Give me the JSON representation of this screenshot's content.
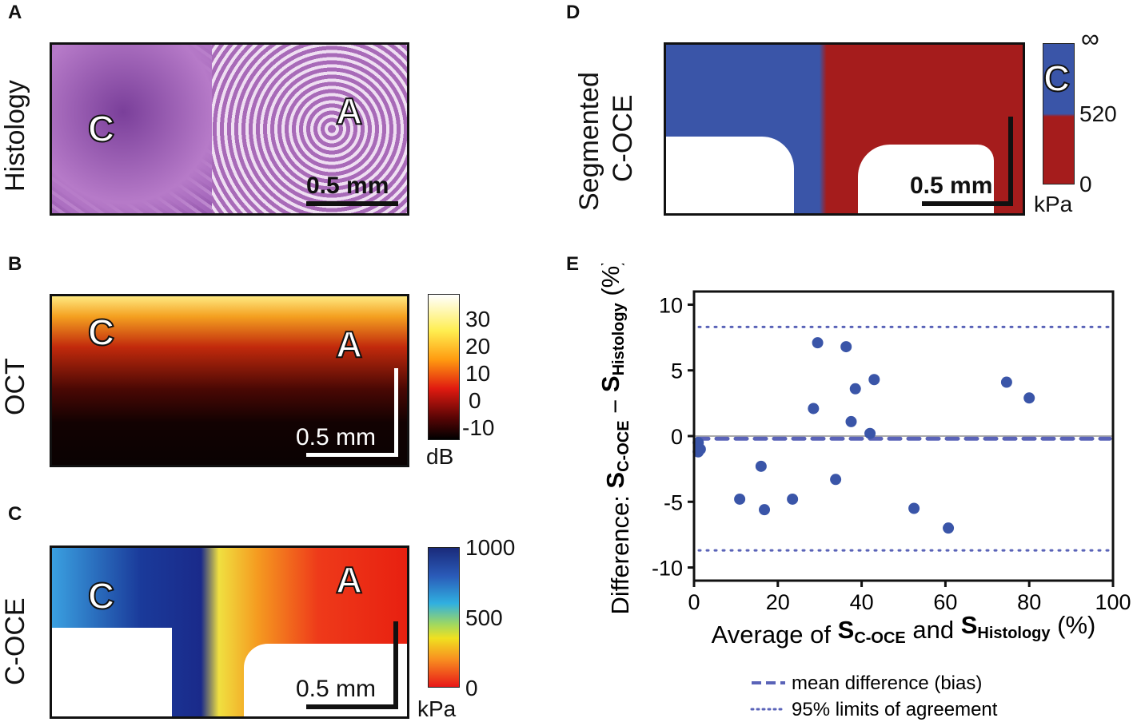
{
  "panels": {
    "A": {
      "letter": "A",
      "row_label": "Histology",
      "region_c": "C",
      "region_a": "A",
      "scale_bar": "0.5 mm"
    },
    "B": {
      "letter": "B",
      "row_label": "OCT",
      "region_c": "C",
      "region_a": "A",
      "scale_bar": "0.5 mm",
      "colorbar": {
        "ticks": [
          "30",
          "20",
          "10",
          "0",
          "-10"
        ],
        "unit": "dB"
      }
    },
    "C": {
      "letter": "C",
      "row_label": "C-OCE",
      "region_c": "C",
      "region_a": "A",
      "scale_bar": "0.5 mm",
      "colorbar": {
        "ticks": [
          "1000",
          "500",
          "0"
        ],
        "unit": "kPa"
      }
    },
    "D": {
      "letter": "D",
      "row_label_1": "Segmented",
      "row_label_2": "C-OCE",
      "scale_bar": "0.5 mm",
      "colorbar": {
        "ticks": [
          "∞",
          "520",
          "0"
        ],
        "unit": "kPa",
        "region": "C"
      }
    },
    "E": {
      "letter": "E"
    }
  },
  "colors": {
    "blue": "#3a55a8",
    "red": "#a51c1c",
    "marker": "#3a55a8",
    "line": "#5a63b8"
  },
  "chart_data": {
    "type": "scatter",
    "title": "",
    "xlabel": {
      "prefix": "Average of ",
      "s1": "S",
      "sub1": "C-OCE",
      "mid": " and ",
      "s2": "S",
      "sub2": "Histology",
      "suffix": " (%)"
    },
    "ylabel": {
      "prefix": "Difference: ",
      "s1": "S",
      "sub1": "C-OCE",
      "mid": " − ",
      "s2": "S",
      "sub2": "Histology",
      "suffix": " (%)"
    },
    "xlim": [
      0,
      100
    ],
    "ylim": [
      -11,
      11
    ],
    "xticks": [
      0,
      20,
      40,
      60,
      80,
      100
    ],
    "yticks": [
      -10,
      -5,
      0,
      5,
      10
    ],
    "points": [
      [
        1,
        -0.5
      ],
      [
        1.5,
        -1.0
      ],
      [
        1,
        -1.2
      ],
      [
        10.9,
        -4.8
      ],
      [
        16,
        -2.3
      ],
      [
        16.8,
        -5.6
      ],
      [
        23.5,
        -4.8
      ],
      [
        28.5,
        2.1
      ],
      [
        29.5,
        7.1
      ],
      [
        33.8,
        -3.3
      ],
      [
        36.3,
        6.8
      ],
      [
        37.5,
        1.1
      ],
      [
        38.5,
        3.6
      ],
      [
        42,
        0.2
      ],
      [
        43,
        4.3
      ],
      [
        52.5,
        -5.5
      ],
      [
        60.7,
        -7.0
      ],
      [
        74.6,
        4.1
      ],
      [
        80,
        2.9
      ]
    ],
    "zero_line": 0,
    "bias": -0.2,
    "limits_of_agreement": [
      8.3,
      -8.7
    ],
    "legend": {
      "position": "bottom",
      "entries": [
        "mean difference (bias)",
        "95% limits of agreement"
      ]
    }
  }
}
